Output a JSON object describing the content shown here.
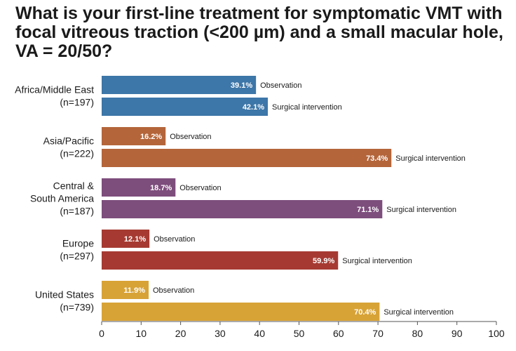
{
  "chart_data": {
    "type": "bar",
    "orientation": "horizontal",
    "title": "What is your first-line treatment for symptomatic VMT with focal vitreous traction (<200 µm) and a small macular hole, VA = 20/50?",
    "xlim": [
      0,
      100
    ],
    "xticks": [
      0,
      10,
      20,
      30,
      40,
      50,
      60,
      70,
      80,
      90,
      100
    ],
    "grid": false,
    "groups": [
      {
        "region": "Africa/Middle East",
        "n": "(n=197)",
        "color": "#3d76a8",
        "bars": [
          {
            "category": "Observation",
            "value": 39.1,
            "value_label": "39.1%"
          },
          {
            "category": "Surgical intervention",
            "value": 42.1,
            "value_label": "42.1%"
          }
        ]
      },
      {
        "region": "Asia/Pacific",
        "n": "(n=222)",
        "color": "#b4653a",
        "bars": [
          {
            "category": "Observation",
            "value": 16.2,
            "value_label": "16.2%"
          },
          {
            "category": "Surgical intervention",
            "value": 73.4,
            "value_label": "73.4%"
          }
        ]
      },
      {
        "region": "Central & South America",
        "region_lines": [
          "Central &",
          "South America"
        ],
        "n": "(n=187)",
        "color": "#7d4d7c",
        "bars": [
          {
            "category": "Observation",
            "value": 18.7,
            "value_label": "18.7%"
          },
          {
            "category": "Surgical intervention",
            "value": 71.1,
            "value_label": "71.1%"
          }
        ]
      },
      {
        "region": "Europe",
        "n": "(n=297)",
        "color": "#a63a32",
        "bars": [
          {
            "category": "Observation",
            "value": 12.1,
            "value_label": "12.1%"
          },
          {
            "category": "Surgical intervention",
            "value": 59.9,
            "value_label": "59.9%"
          }
        ]
      },
      {
        "region": "United States",
        "n": "(n=739)",
        "color": "#d8a336",
        "bars": [
          {
            "category": "Observation",
            "value": 11.9,
            "value_label": "11.9%"
          },
          {
            "category": "Surgical intervention",
            "value": 70.4,
            "value_label": "70.4%"
          }
        ]
      }
    ]
  }
}
